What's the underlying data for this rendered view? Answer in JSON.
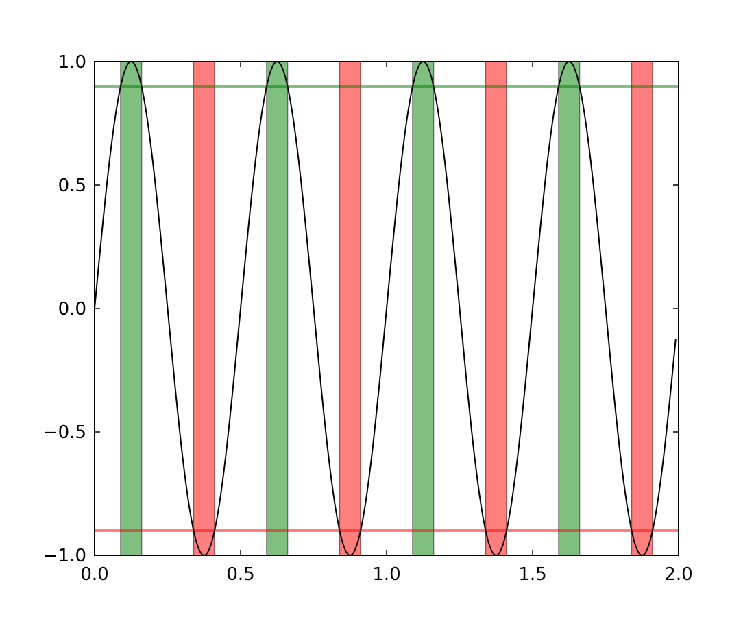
{
  "chart_data": {
    "type": "line",
    "x": [
      0,
      0.025,
      0.05,
      0.075,
      0.1,
      0.125,
      0.15,
      0.175,
      0.2,
      0.225,
      0.25,
      0.275,
      0.3,
      0.325,
      0.35,
      0.375,
      0.4,
      0.425,
      0.45,
      0.475,
      0.5,
      0.525,
      0.55,
      0.575,
      0.6,
      0.625,
      0.65,
      0.675,
      0.7,
      0.725,
      0.75,
      0.775,
      0.8,
      0.825,
      0.85,
      0.875,
      0.9,
      0.925,
      0.95,
      0.975,
      1,
      1.025,
      1.05,
      1.075,
      1.1,
      1.125,
      1.15,
      1.175,
      1.2,
      1.225,
      1.25,
      1.275,
      1.3,
      1.325,
      1.35,
      1.375,
      1.4,
      1.425,
      1.45,
      1.475,
      1.5,
      1.525,
      1.55,
      1.575,
      1.6,
      1.625,
      1.65,
      1.675,
      1.7,
      1.725,
      1.75,
      1.775,
      1.8,
      1.825,
      1.85,
      1.875,
      1.9,
      1.925,
      1.95,
      1.975,
      1.99
    ],
    "values": [
      0,
      0.309,
      0.588,
      0.809,
      0.951,
      1,
      0.951,
      0.809,
      0.588,
      0.309,
      0,
      -0.309,
      -0.588,
      -0.809,
      -0.951,
      -1,
      -0.951,
      -0.809,
      -0.588,
      -0.309,
      0,
      0.309,
      0.588,
      0.809,
      0.951,
      1,
      0.951,
      0.809,
      0.588,
      0.309,
      0,
      -0.309,
      -0.588,
      -0.809,
      -0.951,
      -1,
      -0.951,
      -0.809,
      -0.588,
      -0.309,
      0,
      0.309,
      0.588,
      0.809,
      0.951,
      1,
      0.951,
      0.809,
      0.588,
      0.309,
      0,
      -0.309,
      -0.588,
      -0.809,
      -0.951,
      -1,
      -0.951,
      -0.809,
      -0.588,
      -0.309,
      0,
      0.309,
      0.588,
      0.809,
      0.951,
      1,
      0.951,
      0.809,
      0.588,
      0.309,
      0,
      -0.309,
      -0.588,
      -0.809,
      -0.951,
      -1,
      -0.951,
      -0.809,
      -0.588,
      -0.309,
      -0.125
    ],
    "color": "#000000",
    "spans": [
      {
        "x": [
          0.089,
          0.161
        ],
        "color": "#008000"
      },
      {
        "x": [
          0.339,
          0.411
        ],
        "color": "#ff0000"
      },
      {
        "x": [
          0.589,
          0.661
        ],
        "color": "#008000"
      },
      {
        "x": [
          0.839,
          0.911
        ],
        "color": "#ff0000"
      },
      {
        "x": [
          1.089,
          1.161
        ],
        "color": "#008000"
      },
      {
        "x": [
          1.339,
          1.411
        ],
        "color": "#ff0000"
      },
      {
        "x": [
          1.589,
          1.661
        ],
        "color": "#008000"
      },
      {
        "x": [
          1.839,
          1.911
        ],
        "color": "#ff0000"
      }
    ],
    "hlines": [
      {
        "y": 0.9,
        "color": "#008000"
      },
      {
        "y": -0.9,
        "color": "#ff0000"
      }
    ],
    "xlim": [
      0,
      2
    ],
    "ylim": [
      -1,
      1
    ],
    "xticks": [
      {
        "value": 0,
        "label": "0.0"
      },
      0.5,
      {
        "value": 1,
        "label": "1.0"
      },
      1.5,
      {
        "value": 2,
        "label": "2.0"
      }
    ],
    "yticks": [
      {
        "value": -1,
        "label": "−1.0"
      },
      {
        "value": -0.5,
        "label": "−0.5"
      },
      {
        "value": 0,
        "label": "0.0"
      },
      0.5,
      {
        "value": 1,
        "label": "1.0"
      }
    ]
  }
}
